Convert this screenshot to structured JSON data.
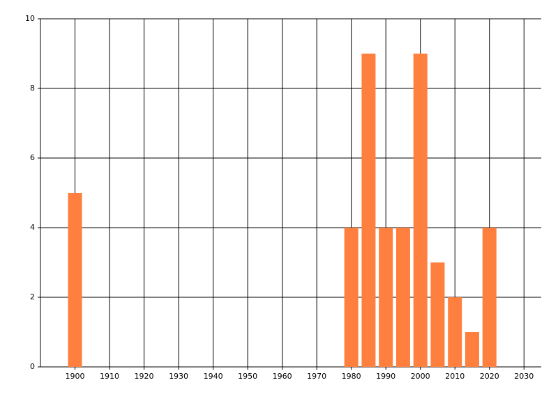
{
  "chart_data": {
    "type": "bar",
    "x": [
      1900,
      1980,
      1985,
      1990,
      1995,
      2000,
      2005,
      2010,
      2015,
      2020
    ],
    "values": [
      5,
      4,
      9,
      4,
      4,
      9,
      3,
      2,
      1,
      4
    ],
    "color": "#ff7f3f",
    "xlim": [
      1890,
      2035
    ],
    "xticks": [
      1900,
      1910,
      1920,
      1930,
      1940,
      1950,
      1960,
      1970,
      1980,
      1990,
      2000,
      2010,
      2020,
      2030
    ],
    "ylim": [
      0,
      10
    ],
    "yticks": [
      0,
      2,
      4,
      6,
      8,
      10
    ],
    "grid": true
  }
}
